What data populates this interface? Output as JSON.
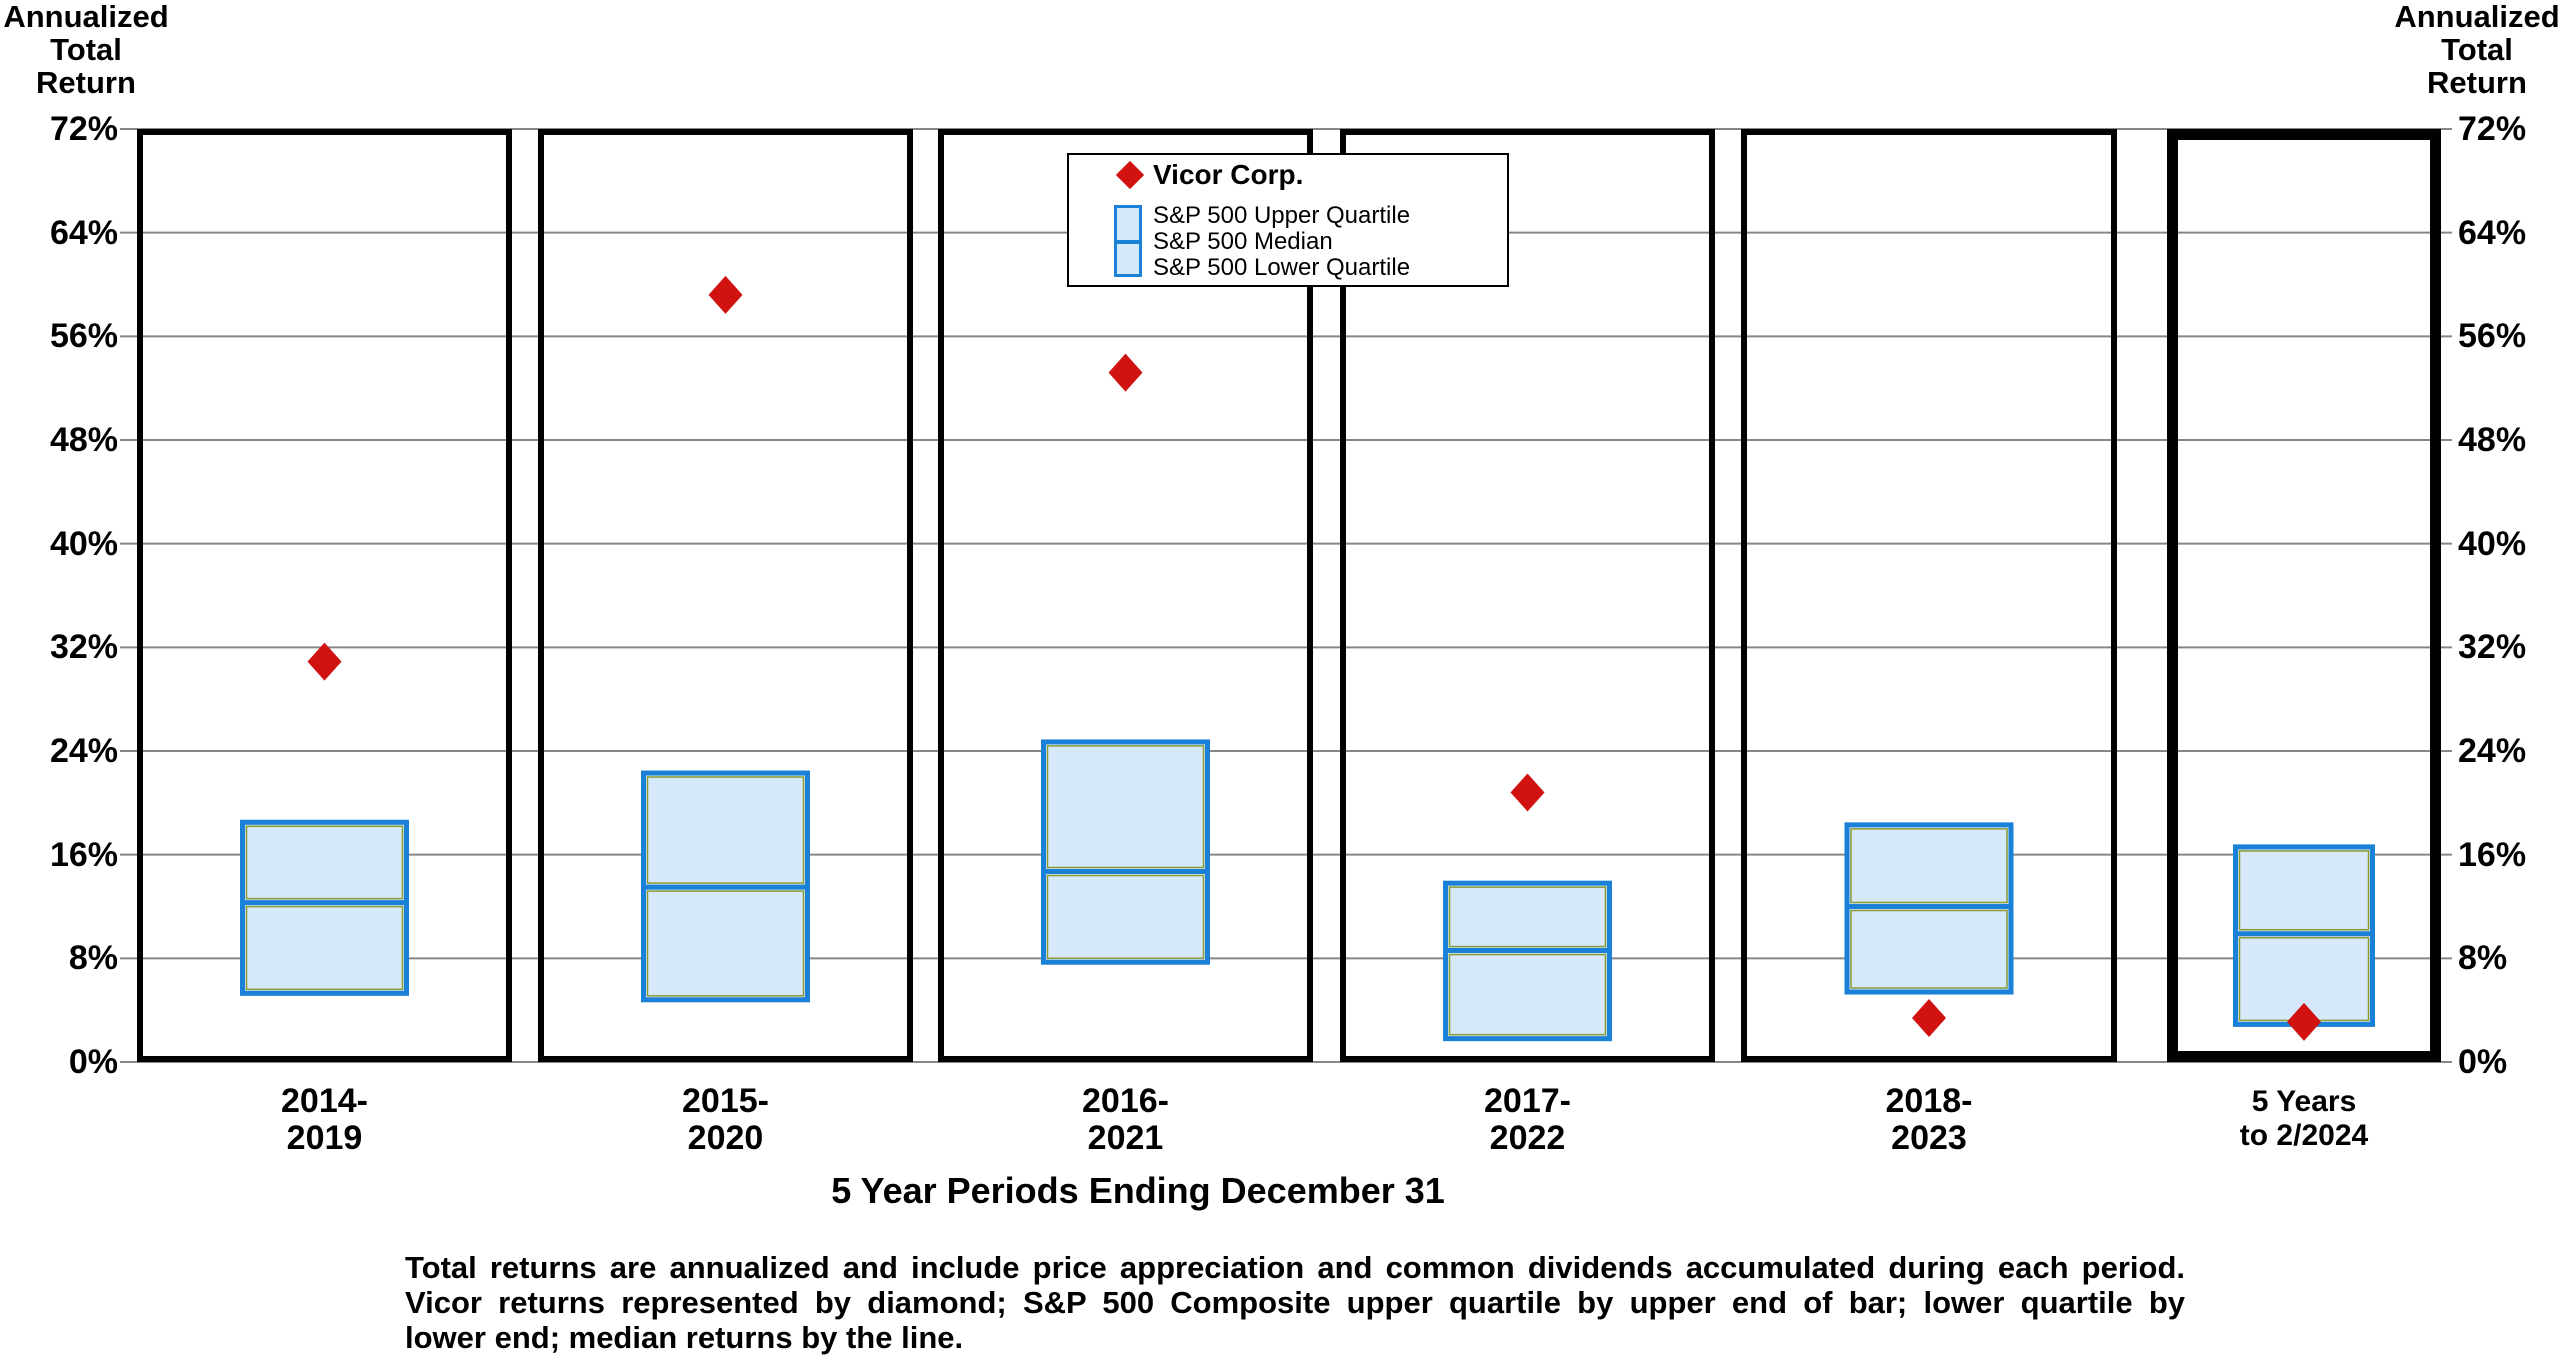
{
  "page": {
    "background": "#ffffff"
  },
  "axis": {
    "title_left": "Annualized\nTotal\nReturn",
    "title_right": "Annualized\nTotal\nReturn",
    "title_lines": [
      "Annualized",
      "Total",
      "Return"
    ],
    "tick_values": [
      0,
      8,
      16,
      24,
      32,
      40,
      48,
      56,
      64,
      72
    ],
    "tick_suffix": "%"
  },
  "caption": "5 Year Periods Ending December 31",
  "legend": {
    "vicor_label": "Vicor Corp.",
    "upper_label": "S&P 500 Upper Quartile",
    "median_label": "S&P 500 Median",
    "lower_label": "S&P 500 Lower Quartile"
  },
  "footnote_lines": [
    "Total returns are annualized and include price appreciation and common dividends accumulated during each period.",
    "Vicor returns represented by diamond; S&P 500 Composite upper quartile by upper end of bar; lower quartile by",
    "lower end; median returns by the line."
  ],
  "colors": {
    "diamond_red": "#d01310",
    "box_border_blue": "#1a80d8",
    "box_fill": "#d6e9fa",
    "box_inner_hairline": "#8a9a33",
    "gridline_gray": "#878787",
    "panel_border": "#000000"
  },
  "chart_data": {
    "type": "box-and-marker",
    "title": "",
    "xlabel": "5 Year Periods Ending December 31",
    "ylabel": "Annualized Total Return",
    "ylim": [
      0,
      72
    ],
    "ytick_step": 8,
    "grid": true,
    "legend_position": "top-center",
    "marker_series_name": "Vicor Corp.",
    "box_series_names": [
      "S&P 500 Upper Quartile",
      "S&P 500 Median",
      "S&P 500 Lower Quartile"
    ],
    "periods": [
      {
        "label_lines": [
          "2014-",
          "2019"
        ],
        "vicor": 30.9,
        "upper_quartile": 18.5,
        "median": 12.3,
        "lower_quartile": 5.3
      },
      {
        "label_lines": [
          "2015-",
          "2020"
        ],
        "vicor": 59.2,
        "upper_quartile": 22.3,
        "median": 13.5,
        "lower_quartile": 4.8
      },
      {
        "label_lines": [
          "2016-",
          "2021"
        ],
        "vicor": 53.2,
        "upper_quartile": 24.7,
        "median": 14.7,
        "lower_quartile": 7.7
      },
      {
        "label_lines": [
          "2017-",
          "2022"
        ],
        "vicor": 20.8,
        "upper_quartile": 13.8,
        "median": 8.6,
        "lower_quartile": 1.8
      },
      {
        "label_lines": [
          "2018-",
          "2023"
        ],
        "vicor": 3.4,
        "upper_quartile": 18.3,
        "median": 12.0,
        "lower_quartile": 5.4
      },
      {
        "label_lines": [
          "5 Years",
          "to  2/2024"
        ],
        "vicor": 3.1,
        "upper_quartile": 16.6,
        "median": 9.9,
        "lower_quartile": 2.9,
        "highlighted_frame": true
      }
    ]
  }
}
